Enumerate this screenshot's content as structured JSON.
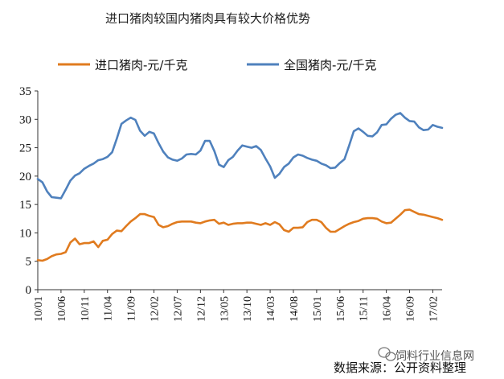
{
  "chart_data": {
    "type": "line",
    "title": "进口猪肉较国内猪肉具有较大价格优势",
    "xlabel": "",
    "ylabel": "",
    "ylim": [
      0,
      35
    ],
    "yticks": [
      0,
      5,
      10,
      15,
      20,
      25,
      30,
      35
    ],
    "grid": false,
    "legend_position": "top",
    "x_tick_labels": [
      "10/01",
      "10/06",
      "10/11",
      "11/04",
      "11/09",
      "12/02",
      "12/07",
      "12/12",
      "13/05",
      "13/10",
      "14/03",
      "14/08",
      "15/01",
      "15/06",
      "15/11",
      "16/04",
      "16/09",
      "17/02"
    ],
    "x_tick_indices": [
      0,
      5,
      10,
      15,
      20,
      25,
      30,
      35,
      40,
      45,
      50,
      55,
      60,
      65,
      70,
      75,
      80,
      85
    ],
    "series": [
      {
        "name": "进口猪肉-元/千克",
        "color": "#e07b1f",
        "values": [
          5.2,
          5.1,
          5.4,
          5.9,
          6.2,
          6.3,
          6.6,
          8.3,
          9.0,
          8.0,
          8.2,
          8.2,
          8.5,
          7.5,
          8.6,
          8.8,
          9.8,
          10.4,
          10.3,
          11.2,
          12.0,
          12.6,
          13.3,
          13.3,
          13.0,
          12.8,
          11.4,
          11.0,
          11.2,
          11.6,
          11.9,
          12.0,
          12.0,
          12.0,
          11.8,
          11.7,
          12.0,
          12.2,
          12.3,
          11.6,
          11.8,
          11.4,
          11.6,
          11.7,
          11.7,
          11.8,
          11.8,
          11.6,
          11.4,
          11.7,
          11.4,
          11.9,
          11.5,
          10.5,
          10.2,
          10.9,
          10.9,
          11.0,
          11.9,
          12.3,
          12.3,
          11.9,
          10.9,
          10.2,
          10.2,
          10.7,
          11.2,
          11.6,
          11.9,
          12.1,
          12.5,
          12.6,
          12.6,
          12.5,
          12.0,
          11.7,
          11.8,
          12.5,
          13.2,
          14.0,
          14.1,
          13.7,
          13.3,
          13.2,
          13.0,
          12.8,
          12.6,
          12.3
        ]
      },
      {
        "name": "全国猪肉-元/千克",
        "color": "#4f81bd",
        "values": [
          19.5,
          18.9,
          17.3,
          16.3,
          16.2,
          16.1,
          17.6,
          19.2,
          20.1,
          20.5,
          21.3,
          21.8,
          22.2,
          22.8,
          23.0,
          23.4,
          24.2,
          26.6,
          29.2,
          29.8,
          30.3,
          29.9,
          28.0,
          27.1,
          27.8,
          27.5,
          25.8,
          24.3,
          23.3,
          22.9,
          22.7,
          23.1,
          23.8,
          23.9,
          23.8,
          24.5,
          26.2,
          26.2,
          24.4,
          22.0,
          21.6,
          22.8,
          23.4,
          24.5,
          25.4,
          25.2,
          25.0,
          25.3,
          24.6,
          23.1,
          21.7,
          19.7,
          20.4,
          21.6,
          22.2,
          23.3,
          23.8,
          23.6,
          23.2,
          22.9,
          22.7,
          22.2,
          21.9,
          21.4,
          21.5,
          22.3,
          23.0,
          25.4,
          27.9,
          28.4,
          27.8,
          27.1,
          27.0,
          27.7,
          29.0,
          29.1,
          30.1,
          30.8,
          31.1,
          30.3,
          29.7,
          29.6,
          28.6,
          28.1,
          28.2,
          29.0,
          28.7,
          28.5
        ]
      }
    ]
  },
  "source_note": "数据来源：公开资料整理",
  "watermark": "饲料行业信息网"
}
